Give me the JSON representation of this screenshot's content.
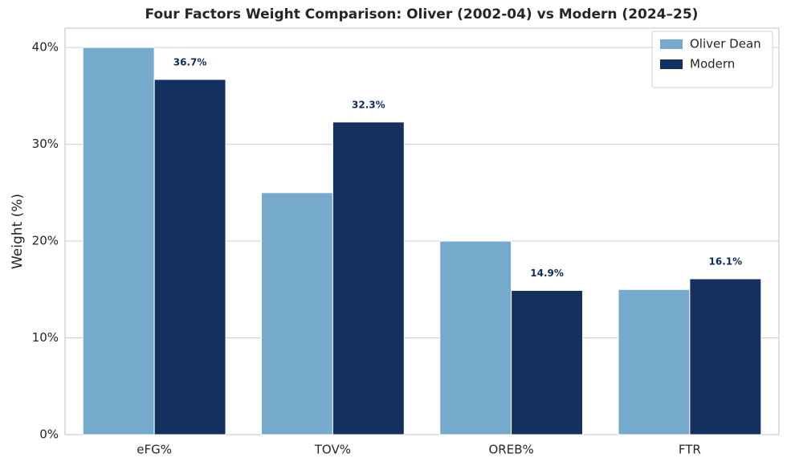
{
  "chart_data": {
    "type": "bar",
    "title": "Four Factors Weight Comparison: Oliver (2002-04) vs Modern (2024–25)",
    "y_label": "Weight (%)",
    "categories": [
      "eFG%",
      "TOV%",
      "OREB%",
      "FTR"
    ],
    "series": [
      {
        "name": "Oliver Dean",
        "color": "#76aacc",
        "values": [
          40,
          25,
          20,
          15
        ]
      },
      {
        "name": "Modern",
        "color": "#14305e",
        "values": [
          36.7,
          32.3,
          14.9,
          16.1
        ],
        "value_labels": [
          "36.7%",
          "32.3%",
          "14.9%",
          "16.1%"
        ]
      }
    ],
    "ylim": [
      0,
      42
    ],
    "yticks": [
      {
        "value": 0,
        "label": "0%"
      },
      {
        "value": 10,
        "label": "10%"
      },
      {
        "value": 20,
        "label": "20%"
      },
      {
        "value": 30,
        "label": "30%"
      },
      {
        "value": 40,
        "label": "40%"
      }
    ],
    "grid": true,
    "legend": "upper-right"
  }
}
